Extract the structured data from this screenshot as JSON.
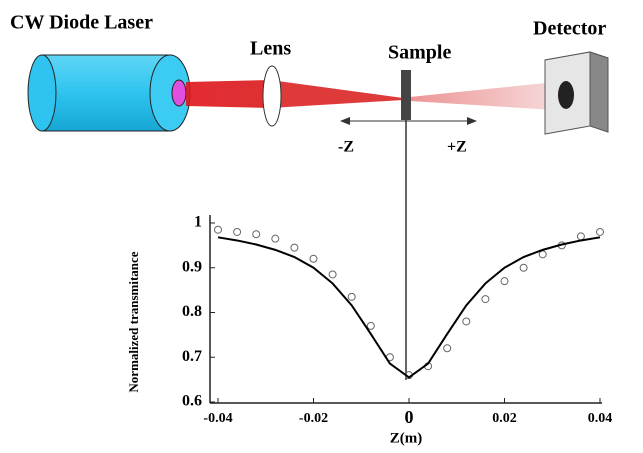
{
  "diagram": {
    "laser": "CW Diode Laser",
    "lens": "Lens",
    "sample": "Sample",
    "detector": "Detector",
    "minus_z": "-Z",
    "plus_z": "+Z"
  },
  "chart_data": {
    "type": "line",
    "x_label": "Z(m)",
    "y_label": "Normalized transmitance",
    "x": [
      -0.04,
      -0.036,
      -0.032,
      -0.028,
      -0.024,
      -0.02,
      -0.016,
      -0.012,
      -0.008,
      -0.004,
      0,
      0.004,
      0.008,
      0.012,
      0.016,
      0.02,
      0.024,
      0.028,
      0.032,
      0.036,
      0.04
    ],
    "series": [
      {
        "style": "markers",
        "color": "#666666",
        "values": [
          0.985,
          0.98,
          0.975,
          0.965,
          0.945,
          0.92,
          0.885,
          0.835,
          0.77,
          0.7,
          0.66,
          0.68,
          0.72,
          0.78,
          0.83,
          0.87,
          0.9,
          0.93,
          0.95,
          0.97,
          0.98
        ]
      },
      {
        "style": "line",
        "color": "#000000",
        "values": [
          0.968,
          0.961,
          0.952,
          0.94,
          0.924,
          0.9,
          0.865,
          0.816,
          0.752,
          0.686,
          0.655,
          0.686,
          0.752,
          0.816,
          0.865,
          0.9,
          0.924,
          0.94,
          0.952,
          0.961,
          0.968
        ]
      }
    ],
    "xlim": [
      -0.04,
      0.04
    ],
    "xticks": [
      -0.04,
      -0.02,
      0,
      0.02,
      0.04
    ],
    "ylim": [
      0.6,
      1
    ],
    "yticks": [
      0.6,
      0.7,
      0.8,
      0.9,
      1
    ]
  }
}
